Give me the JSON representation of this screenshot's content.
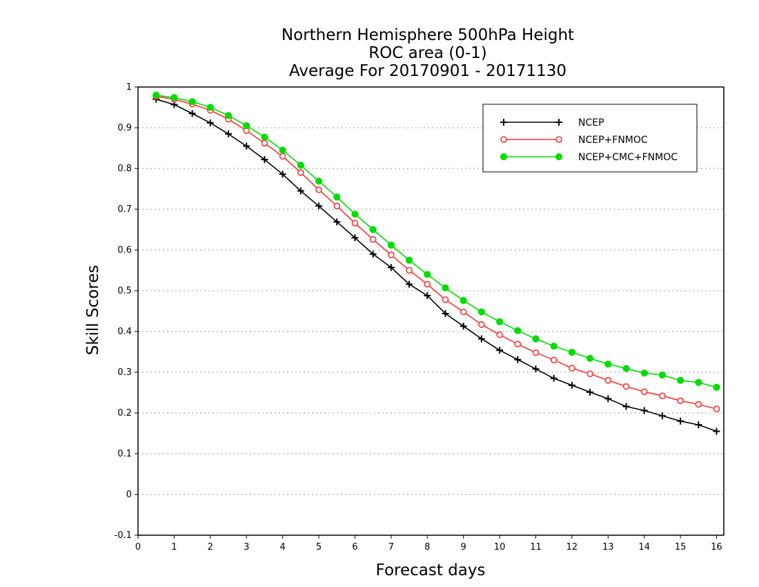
{
  "chart_data": {
    "type": "line",
    "title": [
      "Northern Hemisphere 500hPa Height",
      "ROC area (0-1)",
      "Average For 20170901 - 20171130"
    ],
    "xlabel": "Forecast days",
    "ylabel": "Skill Scores",
    "xlim": [
      0,
      16.2
    ],
    "ylim": [
      -0.1,
      1
    ],
    "xticks": [
      0,
      1,
      2,
      3,
      4,
      5,
      6,
      7,
      8,
      9,
      10,
      11,
      12,
      13,
      14,
      15,
      16
    ],
    "yticks": [
      -0.1,
      0,
      0.1,
      0.2,
      0.3,
      0.4,
      0.5,
      0.6,
      0.7,
      0.8,
      0.9,
      1
    ],
    "ytick_labels": [
      "-0.1",
      "0",
      "0.1",
      "0.2",
      "0.3",
      "0.4",
      "0.5",
      "0.6",
      "0.7",
      "0.8",
      "0.9",
      "1"
    ],
    "grid": "horizontal-dotted",
    "legend_position": "top-right",
    "x": [
      0.5,
      1,
      1.5,
      2,
      2.5,
      3,
      3.5,
      4,
      4.5,
      5,
      5.5,
      6,
      6.5,
      7,
      7.5,
      8,
      8.5,
      9,
      9.5,
      10,
      10.5,
      11,
      11.5,
      12,
      12.5,
      13,
      13.5,
      14,
      14.5,
      15,
      15.5,
      16
    ],
    "series": [
      {
        "name": "NCEP",
        "color": "#000000",
        "marker": "plus",
        "values": [
          0.97,
          0.957,
          0.935,
          0.912,
          0.885,
          0.855,
          0.822,
          0.786,
          0.745,
          0.708,
          0.669,
          0.63,
          0.59,
          0.557,
          0.516,
          0.488,
          0.444,
          0.413,
          0.382,
          0.354,
          0.331,
          0.308,
          0.285,
          0.268,
          0.251,
          0.235,
          0.216,
          0.206,
          0.193,
          0.18,
          0.171,
          0.155
        ]
      },
      {
        "name": "NCEP+FNMOC",
        "color": "#ff3333",
        "marker": "open-circle",
        "values": [
          0.977,
          0.97,
          0.958,
          0.943,
          0.921,
          0.893,
          0.862,
          0.83,
          0.79,
          0.748,
          0.708,
          0.666,
          0.626,
          0.588,
          0.55,
          0.516,
          0.478,
          0.448,
          0.417,
          0.392,
          0.369,
          0.348,
          0.33,
          0.31,
          0.296,
          0.28,
          0.265,
          0.252,
          0.242,
          0.23,
          0.221,
          0.21
        ]
      },
      {
        "name": "NCEP+CMC+FNMOC",
        "color": "#00dd00",
        "marker": "filled-circle",
        "values": [
          0.98,
          0.974,
          0.964,
          0.95,
          0.93,
          0.905,
          0.877,
          0.845,
          0.808,
          0.769,
          0.73,
          0.688,
          0.65,
          0.612,
          0.575,
          0.54,
          0.507,
          0.476,
          0.448,
          0.424,
          0.402,
          0.382,
          0.364,
          0.349,
          0.334,
          0.32,
          0.309,
          0.298,
          0.293,
          0.28,
          0.275,
          0.263
        ]
      }
    ]
  }
}
